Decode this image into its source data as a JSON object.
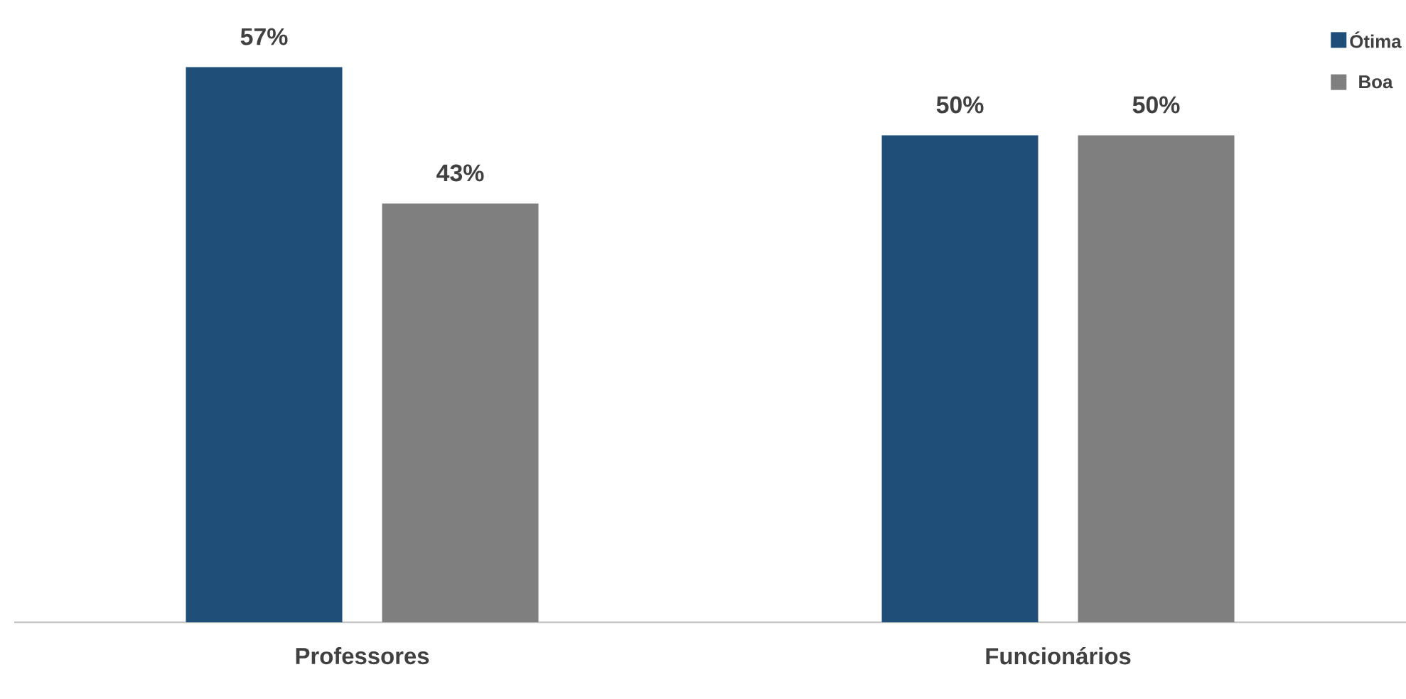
{
  "chart_data": {
    "type": "bar",
    "categories": [
      "Professores",
      "Funcionários"
    ],
    "series": [
      {
        "name": "Ótima",
        "color": "#1f4e79",
        "values": [
          57,
          50
        ],
        "value_labels": [
          "57%",
          "50%"
        ]
      },
      {
        "name": "Boa",
        "color": "#7f7f7f",
        "values": [
          43,
          50
        ],
        "value_labels": [
          "43%",
          "50%"
        ]
      }
    ],
    "legend": "top right"
  }
}
